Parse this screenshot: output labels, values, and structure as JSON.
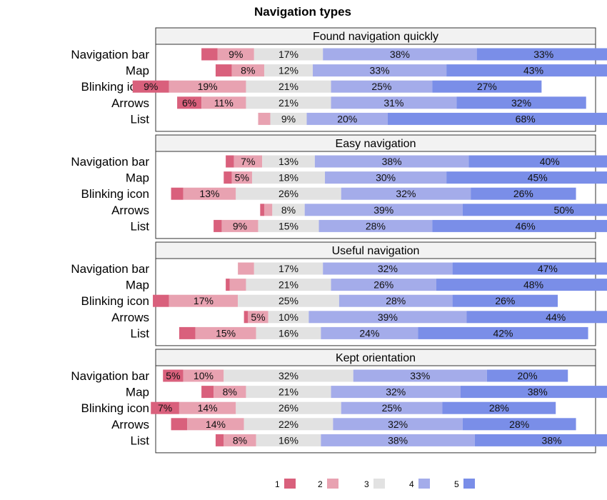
{
  "chart_data": {
    "type": "bar",
    "orientation": "horizontal",
    "stacked": "diverging",
    "title": "Navigation types",
    "categories": [
      "Navigation bar",
      "Map",
      "Blinking icon",
      "Arrows",
      "List"
    ],
    "levels": [
      "1",
      "2",
      "3",
      "4",
      "5"
    ],
    "colors": [
      "#d9607c",
      "#e8a2b1",
      "#e2e2e2",
      "#a4acea",
      "#7a8ee8"
    ],
    "legend_position": "bottom",
    "panels": [
      {
        "title": "Found navigation quickly",
        "rows": [
          {
            "category": "Navigation bar",
            "values": [
              4,
              9,
              17,
              38,
              33
            ],
            "labels": [
              "",
              "9%",
              "17%",
              "38%",
              "33%"
            ]
          },
          {
            "category": "Map",
            "values": [
              4,
              8,
              12,
              33,
              43
            ],
            "labels": [
              "",
              "8%",
              "12%",
              "33%",
              "43%"
            ]
          },
          {
            "category": "Blinking icon",
            "values": [
              9,
              19,
              21,
              25,
              27
            ],
            "labels": [
              "9%",
              "19%",
              "21%",
              "25%",
              "27%"
            ]
          },
          {
            "category": "Arrows",
            "values": [
              6,
              11,
              21,
              31,
              32
            ],
            "labels": [
              "6%",
              "11%",
              "21%",
              "31%",
              "32%"
            ]
          },
          {
            "category": "List",
            "values": [
              0,
              3,
              9,
              20,
              68
            ],
            "labels": [
              "",
              "",
              "9%",
              "20%",
              "68%"
            ]
          }
        ]
      },
      {
        "title": "Easy navigation",
        "rows": [
          {
            "category": "Navigation bar",
            "values": [
              2,
              7,
              13,
              38,
              40
            ],
            "labels": [
              "",
              "7%",
              "13%",
              "38%",
              "40%"
            ]
          },
          {
            "category": "Map",
            "values": [
              2,
              5,
              18,
              30,
              45
            ],
            "labels": [
              "",
              "5%",
              "18%",
              "30%",
              "45%"
            ]
          },
          {
            "category": "Blinking icon",
            "values": [
              3,
              13,
              26,
              32,
              26
            ],
            "labels": [
              "",
              "13%",
              "26%",
              "32%",
              "26%"
            ]
          },
          {
            "category": "Arrows",
            "values": [
              1,
              2,
              8,
              39,
              50
            ],
            "labels": [
              "",
              "",
              "8%",
              "39%",
              "50%"
            ]
          },
          {
            "category": "List",
            "values": [
              2,
              9,
              15,
              28,
              46
            ],
            "labels": [
              "",
              "9%",
              "15%",
              "28%",
              "46%"
            ]
          }
        ]
      },
      {
        "title": "Useful navigation",
        "rows": [
          {
            "category": "Navigation bar",
            "values": [
              0,
              4,
              17,
              32,
              47
            ],
            "labels": [
              "",
              "",
              "17%",
              "32%",
              "47%"
            ]
          },
          {
            "category": "Map",
            "values": [
              1,
              4,
              21,
              26,
              48
            ],
            "labels": [
              "",
              "",
              "21%",
              "26%",
              "48%"
            ]
          },
          {
            "category": "Blinking icon",
            "values": [
              4,
              17,
              25,
              28,
              26
            ],
            "labels": [
              "",
              "17%",
              "25%",
              "28%",
              "26%"
            ]
          },
          {
            "category": "Arrows",
            "values": [
              1,
              5,
              10,
              39,
              44
            ],
            "labels": [
              "",
              "5%",
              "10%",
              "39%",
              "44%"
            ]
          },
          {
            "category": "List",
            "values": [
              4,
              15,
              16,
              24,
              42
            ],
            "labels": [
              "",
              "15%",
              "16%",
              "24%",
              "42%"
            ]
          }
        ]
      },
      {
        "title": "Kept orientation",
        "rows": [
          {
            "category": "Navigation bar",
            "values": [
              5,
              10,
              32,
              33,
              20
            ],
            "labels": [
              "5%",
              "10%",
              "32%",
              "33%",
              "20%"
            ]
          },
          {
            "category": "Map",
            "values": [
              3,
              8,
              21,
              32,
              38
            ],
            "labels": [
              "",
              "8%",
              "21%",
              "32%",
              "38%"
            ]
          },
          {
            "category": "Blinking icon",
            "values": [
              7,
              14,
              26,
              25,
              28
            ],
            "labels": [
              "7%",
              "14%",
              "26%",
              "25%",
              "28%"
            ]
          },
          {
            "category": "Arrows",
            "values": [
              4,
              14,
              22,
              32,
              28
            ],
            "labels": [
              "",
              "14%",
              "22%",
              "32%",
              "28%"
            ]
          },
          {
            "category": "List",
            "values": [
              2,
              8,
              16,
              38,
              38
            ],
            "labels": [
              "",
              "8%",
              "16%",
              "38%",
              "38%"
            ]
          }
        ]
      }
    ]
  }
}
